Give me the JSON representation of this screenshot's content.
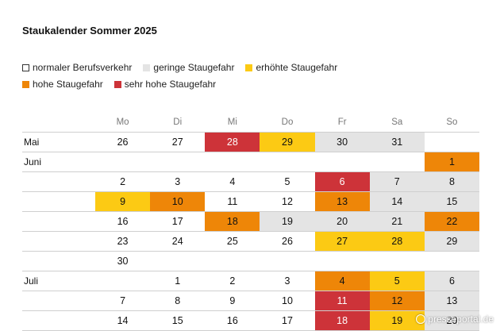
{
  "title": "Staukalender Sommer 2025",
  "legend": [
    {
      "label": "normaler Berufsverkehr",
      "level": 0
    },
    {
      "label": "geringe Staugefahr",
      "level": 1
    },
    {
      "label": "erhöhte Staugefahr",
      "level": 2
    },
    {
      "label": "hohe Staugefahr",
      "level": 3
    },
    {
      "label": "sehr hohe Staugefahr",
      "level": 4
    }
  ],
  "colors": {
    "level0": "#ffffff",
    "level1": "#e4e4e4",
    "level2": "#fcca14",
    "level3": "#ee8608",
    "level4": "#cd3339"
  },
  "weekdays": [
    "Mo",
    "Di",
    "Mi",
    "Do",
    "Fr",
    "Sa",
    "So"
  ],
  "weeks": [
    {
      "label": "Mai",
      "days": [
        {
          "d": "26",
          "l": 0
        },
        {
          "d": "27",
          "l": 0
        },
        {
          "d": "28",
          "l": 4
        },
        {
          "d": "29",
          "l": 2
        },
        {
          "d": "30",
          "l": 1
        },
        {
          "d": "31",
          "l": 1
        },
        null
      ]
    },
    {
      "label": "Juni",
      "days": [
        null,
        null,
        null,
        null,
        null,
        null,
        {
          "d": "1",
          "l": 3
        }
      ]
    },
    {
      "label": "",
      "days": [
        {
          "d": "2",
          "l": 0
        },
        {
          "d": "3",
          "l": 0
        },
        {
          "d": "4",
          "l": 0
        },
        {
          "d": "5",
          "l": 0
        },
        {
          "d": "6",
          "l": 4
        },
        {
          "d": "7",
          "l": 1
        },
        {
          "d": "8",
          "l": 1
        }
      ]
    },
    {
      "label": "",
      "days": [
        {
          "d": "9",
          "l": 2
        },
        {
          "d": "10",
          "l": 3
        },
        {
          "d": "11",
          "l": 0
        },
        {
          "d": "12",
          "l": 0
        },
        {
          "d": "13",
          "l": 3
        },
        {
          "d": "14",
          "l": 1
        },
        {
          "d": "15",
          "l": 1
        }
      ]
    },
    {
      "label": "",
      "days": [
        {
          "d": "16",
          "l": 0
        },
        {
          "d": "17",
          "l": 0
        },
        {
          "d": "18",
          "l": 3
        },
        {
          "d": "19",
          "l": 1
        },
        {
          "d": "20",
          "l": 1
        },
        {
          "d": "21",
          "l": 1
        },
        {
          "d": "22",
          "l": 3
        }
      ]
    },
    {
      "label": "",
      "days": [
        {
          "d": "23",
          "l": 0
        },
        {
          "d": "24",
          "l": 0
        },
        {
          "d": "25",
          "l": 0
        },
        {
          "d": "26",
          "l": 0
        },
        {
          "d": "27",
          "l": 2
        },
        {
          "d": "28",
          "l": 2
        },
        {
          "d": "29",
          "l": 1
        }
      ]
    },
    {
      "label": "",
      "days": [
        {
          "d": "30",
          "l": 0
        },
        null,
        null,
        null,
        null,
        null,
        null
      ]
    },
    {
      "label": "Juli",
      "days": [
        null,
        {
          "d": "1",
          "l": 0
        },
        {
          "d": "2",
          "l": 0
        },
        {
          "d": "3",
          "l": 0
        },
        {
          "d": "4",
          "l": 3
        },
        {
          "d": "5",
          "l": 2
        },
        {
          "d": "6",
          "l": 1
        }
      ]
    },
    {
      "label": "",
      "days": [
        {
          "d": "7",
          "l": 0
        },
        {
          "d": "8",
          "l": 0
        },
        {
          "d": "9",
          "l": 0
        },
        {
          "d": "10",
          "l": 0
        },
        {
          "d": "11",
          "l": 4
        },
        {
          "d": "12",
          "l": 3
        },
        {
          "d": "13",
          "l": 1
        }
      ]
    },
    {
      "label": "",
      "days": [
        {
          "d": "14",
          "l": 0
        },
        {
          "d": "15",
          "l": 0
        },
        {
          "d": "16",
          "l": 0
        },
        {
          "d": "17",
          "l": 0
        },
        {
          "d": "18",
          "l": 4
        },
        {
          "d": "19",
          "l": 2
        },
        {
          "d": "20",
          "l": 1
        }
      ]
    }
  ],
  "watermark": "presseportal.de"
}
